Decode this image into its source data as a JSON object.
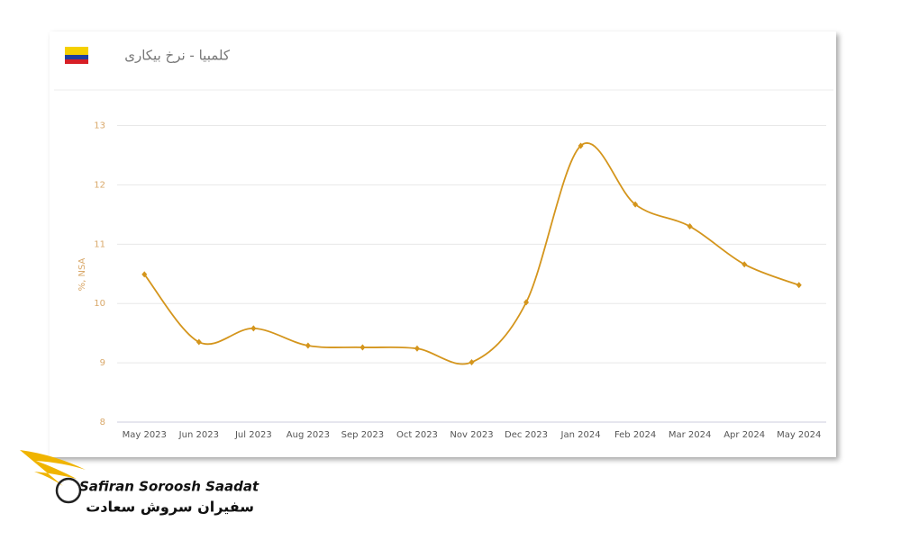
{
  "chart_data": {
    "type": "line",
    "title": "کلمبیا - نرخ بیکاری",
    "y_label": "%, NSA",
    "categories": [
      "May 2023",
      "Jun 2023",
      "Jul 2023",
      "Aug 2023",
      "Sep 2023",
      "Oct 2023",
      "Nov 2023",
      "Dec 2023",
      "Jan 2024",
      "Feb 2024",
      "Mar 2024",
      "Apr 2024",
      "May 2024"
    ],
    "values": [
      10.49,
      9.35,
      9.58,
      9.29,
      9.26,
      9.24,
      9.01,
      10.02,
      12.66,
      11.67,
      11.3,
      10.66,
      10.31
    ],
    "color": "#d4951c",
    "ylim": [
      8,
      13.6
    ],
    "yticks": [
      8,
      9,
      10,
      11,
      12,
      13
    ],
    "grid": true
  },
  "logo": {
    "name_en": "Safiran Soroosh Saadat",
    "name_fa": "سفیران سروش سعادت"
  }
}
